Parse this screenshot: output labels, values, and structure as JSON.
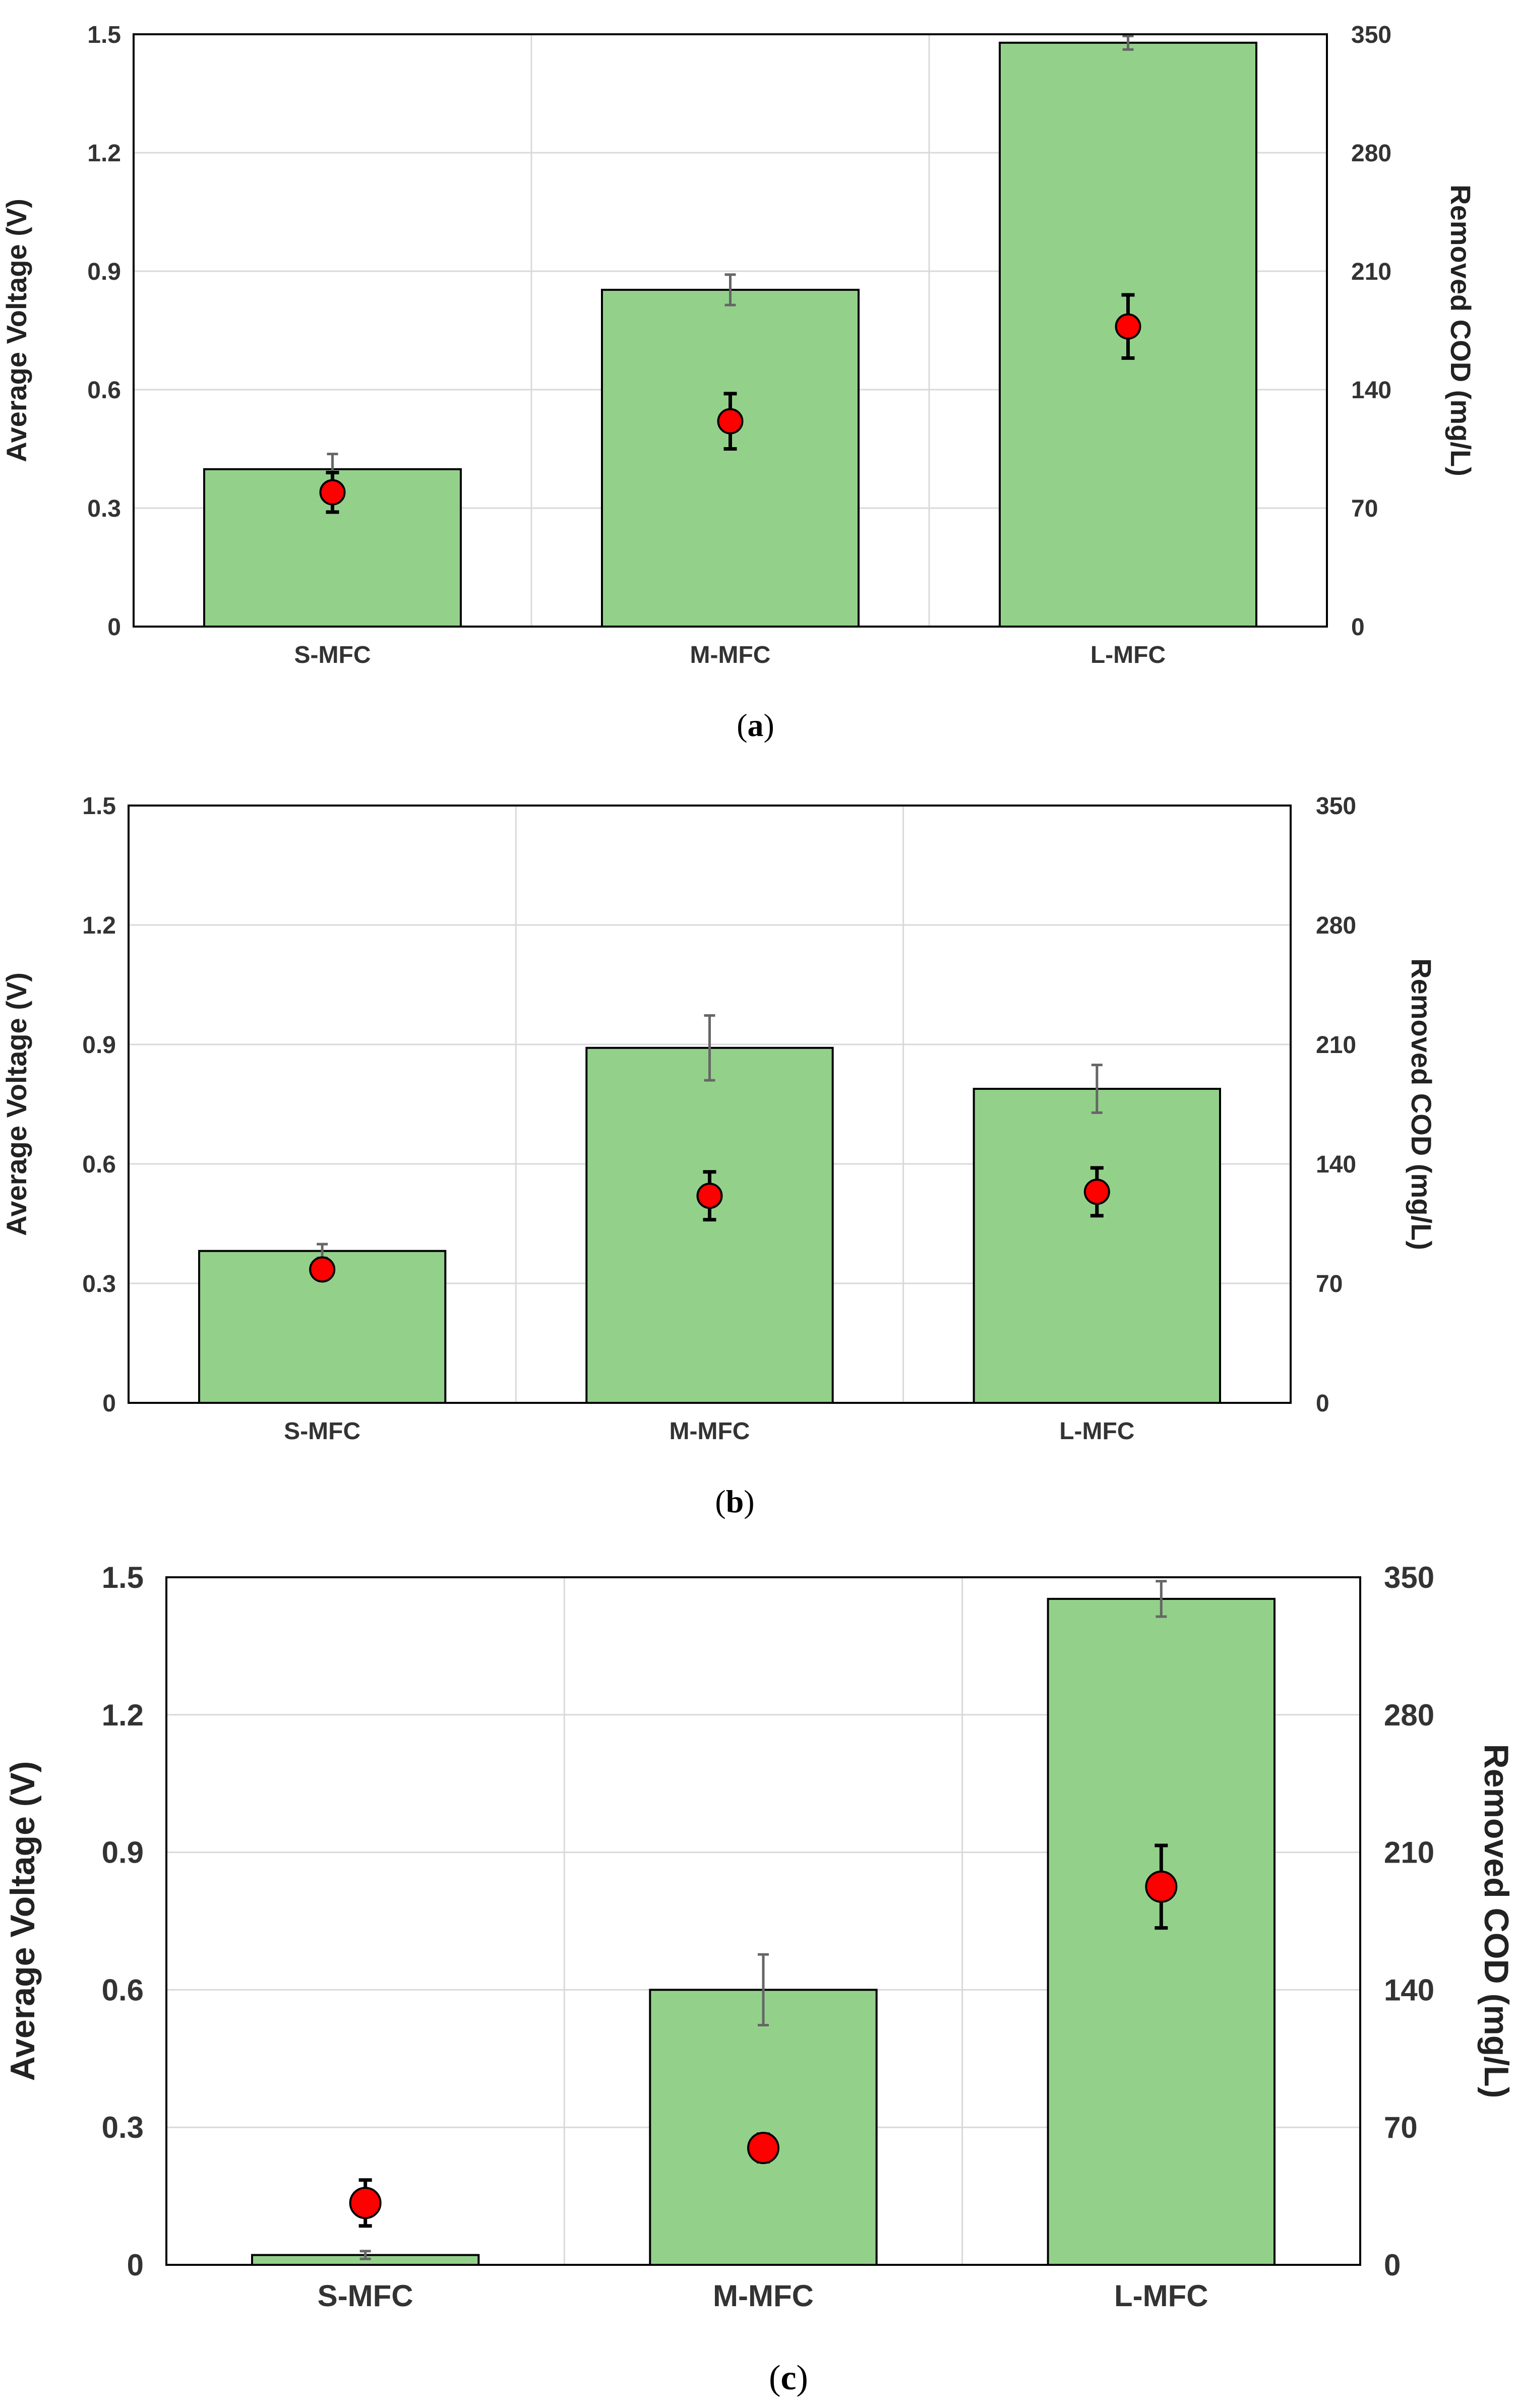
{
  "chart_data": [
    {
      "type": "bar",
      "panel_label": "(a)",
      "categories": [
        "S-MFC",
        "M-MFC",
        "L-MFC"
      ],
      "ylabel": "Average Voltage (V)",
      "y2label": "Removed COD (mg/L)",
      "ylim": [
        0,
        1.5
      ],
      "y2lim": [
        0,
        350
      ],
      "yticks": [
        "0",
        "0.3",
        "0.6",
        "0.9",
        "1.2",
        "1.5"
      ],
      "y2ticks": [
        "0",
        "70",
        "140",
        "210",
        "280",
        "350"
      ],
      "series": [
        {
          "name": "Removed COD",
          "axis": "right",
          "kind": "bar",
          "color": "#93d18b",
          "values": [
            93,
            199,
            345
          ],
          "errors": [
            9,
            9,
            4
          ]
        },
        {
          "name": "Average Voltage",
          "axis": "left",
          "kind": "scatter",
          "color": "#ff0000",
          "values": [
            0.34,
            0.52,
            0.76
          ],
          "errors": [
            0.05,
            0.07,
            0.08
          ]
        }
      ]
    },
    {
      "type": "bar",
      "panel_label": "(b)",
      "categories": [
        "S-MFC",
        "M-MFC",
        "L-MFC"
      ],
      "ylabel": "Average Voltage (V)",
      "y2label": "Removed COD (mg/L)",
      "ylim": [
        0,
        1.5
      ],
      "y2lim": [
        0,
        350
      ],
      "yticks": [
        "0",
        "0.3",
        "0.6",
        "0.9",
        "1.2",
        "1.5"
      ],
      "y2ticks": [
        "0",
        "70",
        "140",
        "210",
        "280",
        "350"
      ],
      "series": [
        {
          "name": "Removed COD",
          "axis": "right",
          "kind": "bar",
          "color": "#93d18b",
          "values": [
            89,
            208,
            184
          ],
          "errors": [
            4,
            19,
            14
          ]
        },
        {
          "name": "Average Voltage",
          "axis": "left",
          "kind": "scatter",
          "color": "#ff0000",
          "values": [
            0.335,
            0.52,
            0.53
          ],
          "errors": [
            0.02,
            0.06,
            0.06
          ]
        }
      ]
    },
    {
      "type": "bar",
      "panel_label": "(c)",
      "categories": [
        "S-MFC",
        "M-MFC",
        "L-MFC"
      ],
      "ylabel": "Average Voltage (V)",
      "y2label": "Removed COD (mg/L)",
      "ylim": [
        0,
        1.5
      ],
      "y2lim": [
        0,
        350
      ],
      "yticks": [
        "0",
        "0.3",
        "0.6",
        "0.9",
        "1.2",
        "1.5"
      ],
      "y2ticks": [
        "0",
        "70",
        "140",
        "210",
        "280",
        "350"
      ],
      "series": [
        {
          "name": "Removed COD",
          "axis": "right",
          "kind": "bar",
          "color": "#93d18b",
          "values": [
            5,
            140,
            339
          ],
          "errors": [
            2,
            18,
            9
          ]
        },
        {
          "name": "Average Voltage",
          "axis": "left",
          "kind": "scatter",
          "color": "#ff0000",
          "values": [
            0.135,
            0.255,
            0.825
          ],
          "errors": [
            0.05,
            0.03,
            0.09
          ]
        }
      ]
    }
  ]
}
